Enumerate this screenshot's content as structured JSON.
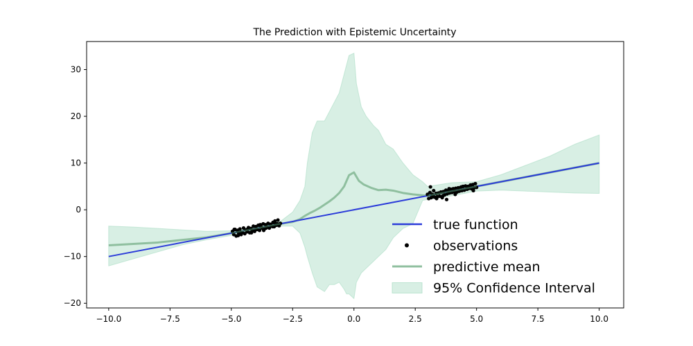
{
  "chart_data": {
    "type": "line",
    "title": "The Prediction with Epistemic Uncertainty",
    "xlabel": "",
    "ylabel": "",
    "xlim": [
      -10.9,
      11.0
    ],
    "ylim": [
      -21.0,
      36.0
    ],
    "x_ticks": [
      -10.0,
      -7.5,
      -5.0,
      -2.5,
      0.0,
      2.5,
      5.0,
      7.5,
      10.0
    ],
    "x_tick_labels": [
      "−10.0",
      "−7.5",
      "−5.0",
      "−2.5",
      "0.0",
      "2.5",
      "5.0",
      "7.5",
      "10.0"
    ],
    "y_ticks": [
      -20,
      -10,
      0,
      10,
      20,
      30
    ],
    "y_tick_labels": [
      "−20",
      "−10",
      "0",
      "10",
      "20",
      "30"
    ],
    "grid": false,
    "legend_position": "lower-right",
    "colors": {
      "true_function": "#2b3bd9",
      "observations": "#000000",
      "predictive_mean": "#8fbf9f",
      "confidence_interval": "#a8dcc3"
    },
    "legend": [
      {
        "key": "true_function",
        "label": "true function"
      },
      {
        "key": "observations",
        "label": "observations"
      },
      {
        "key": "predictive_mean",
        "label": "predictive mean"
      },
      {
        "key": "confidence_interval",
        "label": "95% Confidence Interval"
      }
    ],
    "series": [
      {
        "name": "true function",
        "kind": "line",
        "x": [
          -10,
          10
        ],
        "y": [
          -10,
          10
        ]
      },
      {
        "name": "predictive mean",
        "kind": "line",
        "x": [
          -10,
          -8,
          -6,
          -5,
          -4,
          -3,
          -2.5,
          -2.2,
          -2.0,
          -1.8,
          -1.6,
          -1.4,
          -1.2,
          -1.0,
          -0.8,
          -0.6,
          -0.4,
          -0.2,
          0.0,
          0.2,
          0.4,
          0.7,
          1.0,
          1.3,
          1.6,
          2.0,
          2.4,
          2.8,
          3.0,
          4.0,
          5.0,
          6.0,
          7.0,
          8.0,
          9.0,
          10.0
        ],
        "y": [
          -7.6,
          -7.0,
          -5.9,
          -5.0,
          -4.0,
          -3.0,
          -2.6,
          -2.0,
          -1.3,
          -0.7,
          -0.2,
          0.4,
          1.1,
          1.8,
          2.6,
          3.6,
          5.0,
          7.4,
          8.0,
          6.2,
          5.4,
          4.7,
          4.2,
          4.3,
          4.1,
          3.6,
          3.3,
          3.1,
          3.0,
          4.0,
          5.0,
          6.0,
          7.0,
          8.0,
          9.0,
          10.0
        ]
      },
      {
        "name": "95% Confidence Interval",
        "kind": "band",
        "x": [
          -10,
          -9,
          -8,
          -7,
          -6,
          -5,
          -4,
          -3,
          -2.5,
          -2.2,
          -2.0,
          -1.9,
          -1.7,
          -1.5,
          -1.2,
          -1.0,
          -0.8,
          -0.6,
          -0.4,
          -0.3,
          -0.2,
          0.0,
          0.1,
          0.3,
          0.5,
          0.8,
          1.0,
          1.3,
          1.6,
          2.0,
          2.4,
          2.8,
          3.0,
          4.0,
          5.0,
          6.0,
          7.0,
          8.0,
          9.0,
          10.0
        ],
        "lower": [
          -12.0,
          -10.5,
          -9.0,
          -7.5,
          -6.4,
          -5.5,
          -4.5,
          -3.5,
          -3.5,
          -5.0,
          -8.0,
          -10.0,
          -13.5,
          -16.5,
          -17.5,
          -16.0,
          -16.0,
          -15.5,
          -17.0,
          -18.0,
          -18.0,
          -19.0,
          -15.5,
          -13.5,
          -12.5,
          -11.0,
          -10.0,
          -8.5,
          -6.0,
          -4.0,
          -3.0,
          2.0,
          2.2,
          3.0,
          4.0,
          4.2,
          4.0,
          3.8,
          3.6,
          3.5
        ],
        "upper": [
          -3.5,
          -3.7,
          -4.0,
          -4.3,
          -4.6,
          -4.5,
          -3.5,
          -2.5,
          -0.5,
          2.0,
          5.0,
          10.0,
          16.5,
          19.0,
          19.0,
          21.0,
          23.0,
          25.0,
          29.0,
          31.0,
          33.0,
          33.5,
          27.0,
          22.0,
          20.0,
          18.0,
          17.0,
          14.0,
          13.0,
          10.0,
          7.5,
          6.0,
          5.0,
          5.8,
          6.0,
          7.5,
          9.5,
          11.5,
          14.0,
          16.0
        ]
      },
      {
        "name": "observations",
        "kind": "scatter",
        "x": [
          -4.95,
          -4.9,
          -4.85,
          -4.8,
          -4.75,
          -4.7,
          -4.65,
          -4.6,
          -4.55,
          -4.5,
          -4.45,
          -4.4,
          -4.35,
          -4.3,
          -4.25,
          -4.2,
          -4.15,
          -4.1,
          -4.05,
          -4.0,
          -3.95,
          -3.9,
          -3.85,
          -3.8,
          -3.75,
          -3.7,
          -3.65,
          -3.6,
          -3.55,
          -3.5,
          -3.45,
          -3.4,
          -3.35,
          -3.3,
          -3.25,
          -3.2,
          -3.15,
          -3.1,
          -3.05,
          -3.0,
          -4.88,
          -4.62,
          -4.33,
          -4.07,
          -3.82,
          -3.58,
          -3.31,
          -3.12,
          -4.72,
          -4.18,
          -3.68,
          -3.22,
          3.0,
          3.05,
          3.1,
          3.15,
          3.2,
          3.25,
          3.3,
          3.35,
          3.4,
          3.45,
          3.5,
          3.55,
          3.6,
          3.65,
          3.7,
          3.75,
          3.8,
          3.85,
          3.9,
          3.95,
          4.0,
          4.05,
          4.1,
          4.15,
          4.2,
          4.25,
          4.3,
          4.35,
          4.4,
          4.45,
          4.5,
          4.55,
          4.6,
          4.65,
          4.7,
          4.75,
          4.8,
          4.85,
          4.9,
          4.95,
          5.0,
          3.12,
          3.37,
          3.63,
          3.88,
          4.13,
          4.38,
          4.62,
          4.87,
          3.25,
          3.78,
          4.28,
          4.78
        ],
        "y": [
          -4.6,
          -5.3,
          -4.2,
          -5.6,
          -4.4,
          -5.0,
          -4.1,
          -5.3,
          -4.9,
          -3.9,
          -5.1,
          -4.3,
          -4.7,
          -3.8,
          -4.9,
          -4.0,
          -4.5,
          -3.5,
          -4.6,
          -3.6,
          -4.2,
          -3.3,
          -4.4,
          -3.5,
          -3.9,
          -3.0,
          -4.1,
          -3.2,
          -3.7,
          -2.9,
          -3.9,
          -3.1,
          -3.5,
          -2.7,
          -3.6,
          -2.9,
          -3.3,
          -2.2,
          -3.4,
          -2.9,
          -4.2,
          -4.8,
          -4.1,
          -4.4,
          -3.2,
          -3.9,
          -3.6,
          -3.0,
          -5.5,
          -4.9,
          -4.4,
          -2.4,
          3.3,
          2.4,
          3.7,
          2.6,
          3.3,
          4.1,
          2.7,
          3.5,
          2.8,
          3.6,
          2.9,
          3.8,
          2.6,
          3.9,
          3.2,
          4.2,
          3.4,
          4.1,
          3.6,
          4.4,
          3.7,
          4.5,
          3.9,
          4.6,
          3.8,
          4.7,
          4.0,
          4.8,
          4.1,
          5.0,
          4.2,
          5.1,
          4.4,
          5.0,
          4.6,
          5.3,
          4.5,
          5.4,
          4.7,
          5.6,
          4.8,
          4.9,
          2.4,
          3.0,
          4.5,
          3.3,
          4.9,
          4.4,
          4.1,
          2.8,
          2.2,
          4.0,
          5.3
        ]
      }
    ]
  }
}
